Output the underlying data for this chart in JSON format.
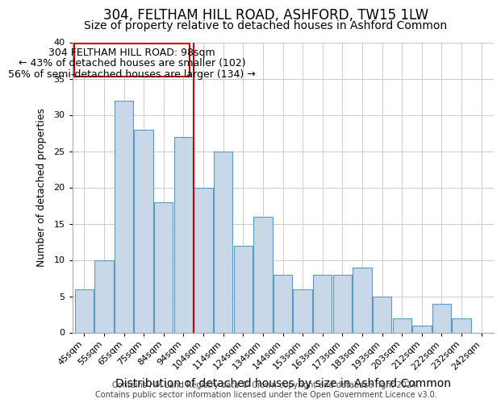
{
  "title": "304, FELTHAM HILL ROAD, ASHFORD, TW15 1LW",
  "subtitle": "Size of property relative to detached houses in Ashford Common",
  "xlabel": "Distribution of detached houses by size in Ashford Common",
  "ylabel": "Number of detached properties",
  "footer_lines": [
    "Contains HM Land Registry data © Crown copyright and database right 2024.",
    "Contains public sector information licensed under the Open Government Licence v3.0."
  ],
  "bins": [
    "45sqm",
    "55sqm",
    "65sqm",
    "75sqm",
    "84sqm",
    "94sqm",
    "104sqm",
    "114sqm",
    "124sqm",
    "134sqm",
    "144sqm",
    "153sqm",
    "163sqm",
    "173sqm",
    "183sqm",
    "193sqm",
    "203sqm",
    "212sqm",
    "222sqm",
    "232sqm",
    "242sqm"
  ],
  "values": [
    6,
    10,
    32,
    28,
    18,
    27,
    20,
    25,
    12,
    16,
    8,
    6,
    8,
    8,
    9,
    5,
    2,
    1,
    4,
    2,
    0
  ],
  "bar_color": "#c8d8e8",
  "bar_edge_color": "#5a9abf",
  "subject_line_color": "#cc0000",
  "annotation_line1": "304 FELTHAM HILL ROAD: 98sqm",
  "annotation_line2": "← 43% of detached houses are smaller (102)",
  "annotation_line3": "56% of semi-detached houses are larger (134) →",
  "ylim": [
    0,
    40
  ],
  "yticks": [
    0,
    5,
    10,
    15,
    20,
    25,
    30,
    35,
    40
  ],
  "grid_color": "#cccccc",
  "background_color": "#ffffff",
  "title_fontsize": 12,
  "subtitle_fontsize": 10,
  "xlabel_fontsize": 10,
  "ylabel_fontsize": 9,
  "tick_fontsize": 8,
  "annotation_fontsize": 9,
  "footer_fontsize": 7
}
